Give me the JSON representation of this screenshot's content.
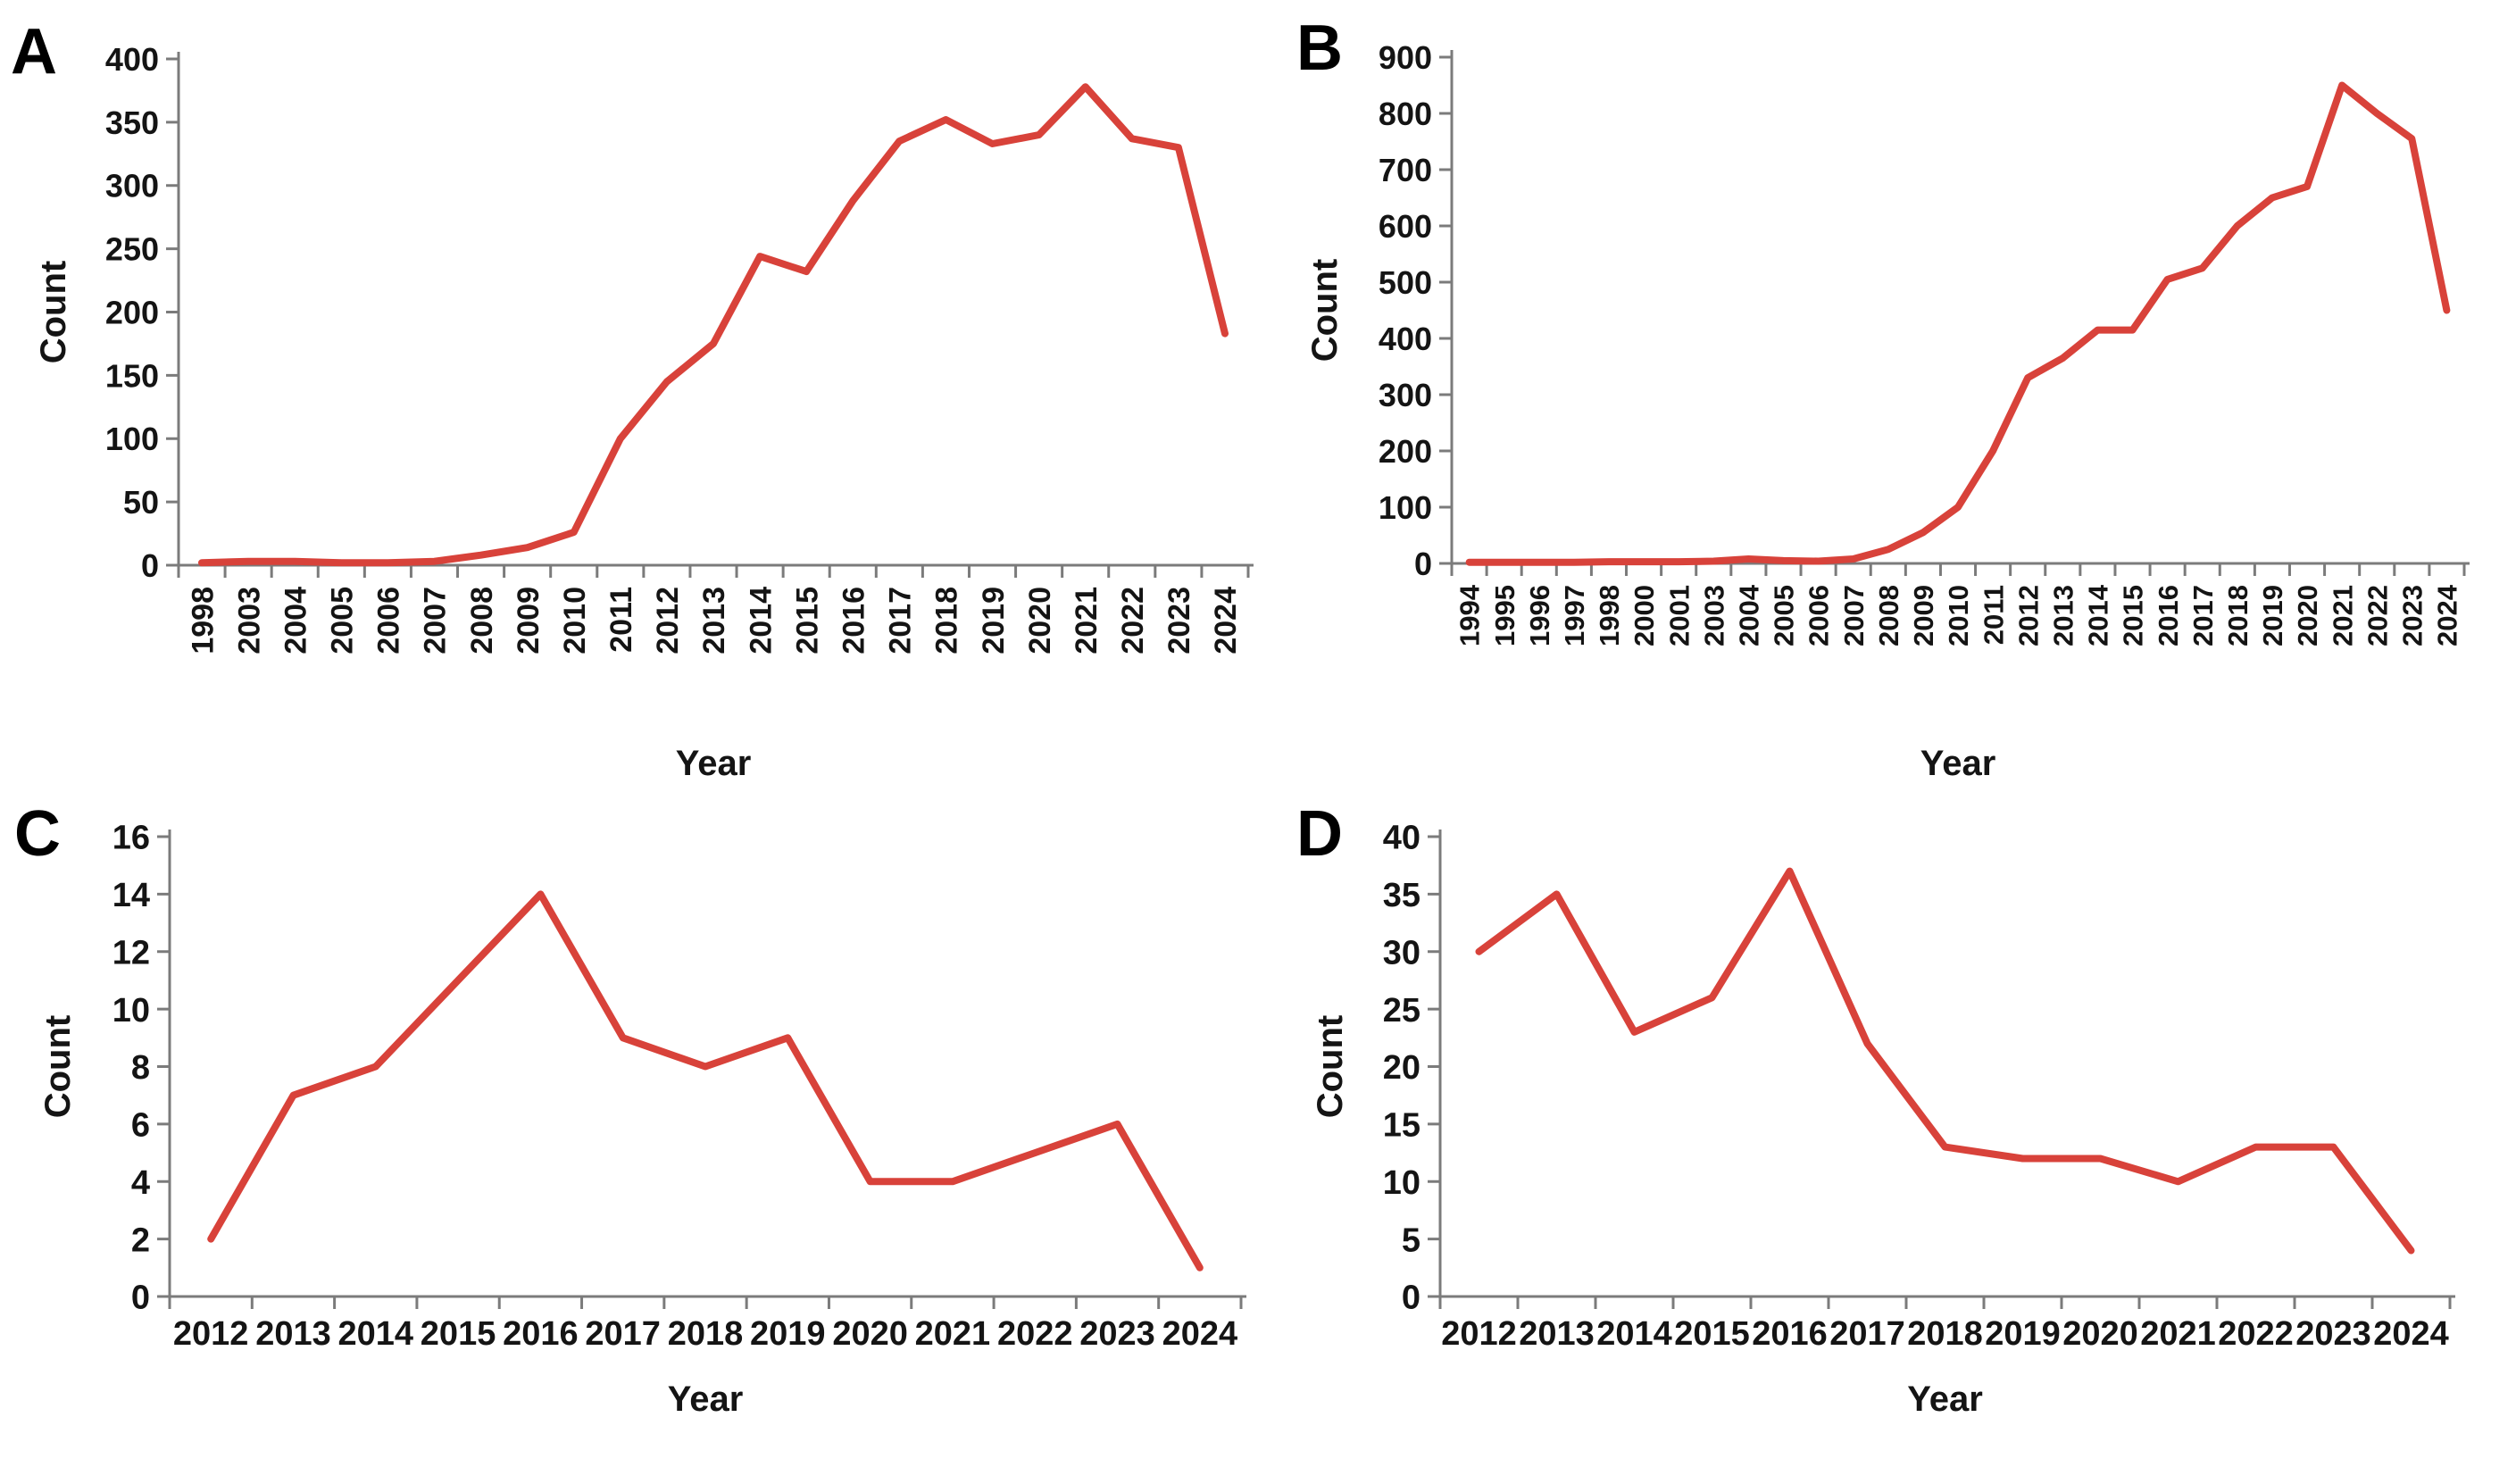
{
  "figure": {
    "description": "Four-panel (A-D) publication figure of red line charts of counts per year",
    "background": "#ffffff"
  },
  "style": {
    "line_color": "#d8423a",
    "axis_color": "#7b7b7b",
    "text_color": "#141414",
    "letter_color": "#000000"
  },
  "chart_data": [
    {
      "panel_letter": "A",
      "type": "line",
      "title": "",
      "xlabel": "Year",
      "ylabel": "Count",
      "ylim": [
        0,
        400
      ],
      "ystep": 50,
      "grid": false,
      "legend": "none",
      "x_tick_label_rotation": 90,
      "categories": [
        "1998",
        "2003",
        "2004",
        "2005",
        "2006",
        "2007",
        "2008",
        "2009",
        "2010",
        "2011",
        "2012",
        "2013",
        "2014",
        "2015",
        "2016",
        "2017",
        "2018",
        "2019",
        "2020",
        "2021",
        "2022",
        "2023",
        "2024"
      ],
      "values": [
        2,
        3,
        3,
        2,
        2,
        3,
        8,
        14,
        26,
        100,
        145,
        175,
        244,
        232,
        288,
        335,
        352,
        333,
        340,
        378,
        337,
        330,
        183
      ]
    },
    {
      "panel_letter": "B",
      "type": "line",
      "title": "",
      "xlabel": "Year",
      "ylabel": "Count",
      "ylim": [
        0,
        900
      ],
      "ystep": 100,
      "grid": false,
      "legend": "none",
      "x_tick_label_rotation": 90,
      "categories": [
        "1994",
        "1995",
        "1996",
        "1997",
        "1998",
        "2000",
        "2001",
        "2003",
        "2004",
        "2005",
        "2006",
        "2007",
        "2008",
        "2009",
        "2010",
        "2011",
        "2012",
        "2013",
        "2014",
        "2015",
        "2016",
        "2017",
        "2018",
        "2019",
        "2020",
        "2021",
        "2022",
        "2023",
        "2024"
      ],
      "values": [
        2,
        2,
        2,
        2,
        3,
        3,
        3,
        4,
        8,
        5,
        4,
        8,
        25,
        55,
        100,
        200,
        330,
        365,
        415,
        415,
        505,
        525,
        600,
        650,
        670,
        850,
        800,
        755,
        450
      ]
    },
    {
      "panel_letter": "C",
      "type": "line",
      "title": "",
      "xlabel": "Year",
      "ylabel": "Count",
      "ylim": [
        0,
        16
      ],
      "ystep": 2,
      "grid": false,
      "legend": "none",
      "x_tick_label_rotation": 0,
      "categories": [
        "2012",
        "2013",
        "2014",
        "2015",
        "2016",
        "2017",
        "2018",
        "2019",
        "2020",
        "2021",
        "2022",
        "2023",
        "2024"
      ],
      "values": [
        2,
        7,
        8,
        11,
        14,
        9,
        8,
        9,
        4,
        4,
        5,
        6,
        1
      ]
    },
    {
      "panel_letter": "D",
      "type": "line",
      "title": "",
      "xlabel": "Year",
      "ylabel": "Count",
      "ylim": [
        0,
        40
      ],
      "ystep": 5,
      "grid": false,
      "legend": "none",
      "x_tick_label_rotation": 0,
      "categories": [
        "2012",
        "2013",
        "2014",
        "2015",
        "2016",
        "2017",
        "2018",
        "2019",
        "2020",
        "2021",
        "2022",
        "2023",
        "2024"
      ],
      "values": [
        30,
        35,
        23,
        26,
        37,
        22,
        13,
        12,
        12,
        10,
        13,
        13,
        4
      ]
    }
  ]
}
